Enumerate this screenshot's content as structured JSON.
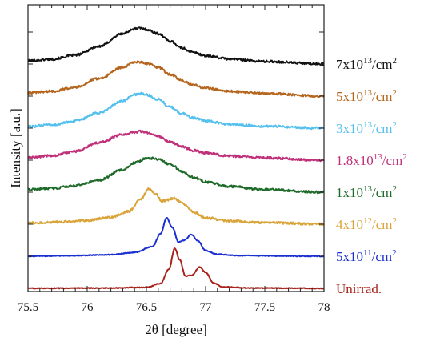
{
  "chart_data": {
    "type": "line",
    "xlabel": "2θ [degree]",
    "ylabel": "Intensity [a.u.]",
    "xlim": [
      75.5,
      78
    ],
    "x_ticks": [
      "75.5",
      "76",
      "76.5",
      "77",
      "77.5",
      "78"
    ],
    "y_tick_labels": "none",
    "grid": false,
    "legend": "right-side labels, stacked",
    "series": [
      {
        "name": "7x10^13/cm^2",
        "name_parts": {
          "base": "7x10",
          "exp1": "13",
          "mid": "/cm",
          "exp2": "2"
        },
        "color": "#111111",
        "offset": 7.0,
        "points": [
          [
            75.5,
            0.1
          ],
          [
            75.7,
            0.15
          ],
          [
            75.9,
            0.28
          ],
          [
            76.1,
            0.55
          ],
          [
            76.3,
            0.95
          ],
          [
            76.4,
            1.1
          ],
          [
            76.45,
            1.12
          ],
          [
            76.5,
            1.08
          ],
          [
            76.6,
            0.95
          ],
          [
            76.7,
            0.72
          ],
          [
            76.8,
            0.5
          ],
          [
            76.9,
            0.36
          ],
          [
            77.0,
            0.26
          ],
          [
            77.2,
            0.16
          ],
          [
            77.5,
            0.08
          ],
          [
            78.0,
            0.0
          ]
        ]
      },
      {
        "name": "5x10^13/cm^2",
        "name_parts": {
          "base": "5x10",
          "exp1": "13",
          "mid": "/cm",
          "exp2": "2"
        },
        "color": "#b5651d",
        "offset": 6.0,
        "points": [
          [
            75.5,
            0.1
          ],
          [
            75.7,
            0.15
          ],
          [
            75.9,
            0.28
          ],
          [
            76.1,
            0.55
          ],
          [
            76.3,
            0.9
          ],
          [
            76.4,
            1.05
          ],
          [
            76.45,
            1.06
          ],
          [
            76.5,
            1.02
          ],
          [
            76.6,
            0.9
          ],
          [
            76.7,
            0.68
          ],
          [
            76.8,
            0.48
          ],
          [
            76.9,
            0.34
          ],
          [
            77.0,
            0.25
          ],
          [
            77.2,
            0.15
          ],
          [
            77.5,
            0.08
          ],
          [
            78.0,
            0.0
          ]
        ]
      },
      {
        "name": "3x10^13/cm^2",
        "name_parts": {
          "base": "3x10",
          "exp1": "13",
          "mid": "/cm",
          "exp2": "2"
        },
        "color": "#55c0ee",
        "offset": 5.0,
        "points": [
          [
            75.5,
            0.05
          ],
          [
            75.7,
            0.1
          ],
          [
            75.9,
            0.22
          ],
          [
            76.1,
            0.48
          ],
          [
            76.3,
            0.85
          ],
          [
            76.4,
            1.05
          ],
          [
            76.45,
            1.08
          ],
          [
            76.5,
            1.04
          ],
          [
            76.6,
            0.9
          ],
          [
            76.7,
            0.66
          ],
          [
            76.8,
            0.46
          ],
          [
            76.9,
            0.32
          ],
          [
            77.0,
            0.22
          ],
          [
            77.2,
            0.12
          ],
          [
            77.5,
            0.06
          ],
          [
            78.0,
            0.0
          ]
        ]
      },
      {
        "name": "1.8x10^13/cm^2",
        "name_parts": {
          "base": "1.8x10",
          "exp1": "13",
          "mid": "/cm",
          "exp2": "2"
        },
        "color": "#c0307a",
        "offset": 4.0,
        "points": [
          [
            75.5,
            0.08
          ],
          [
            75.7,
            0.14
          ],
          [
            75.9,
            0.28
          ],
          [
            76.1,
            0.55
          ],
          [
            76.3,
            0.8
          ],
          [
            76.4,
            0.88
          ],
          [
            76.45,
            0.9
          ],
          [
            76.5,
            0.86
          ],
          [
            76.6,
            0.75
          ],
          [
            76.7,
            0.58
          ],
          [
            76.8,
            0.42
          ],
          [
            76.9,
            0.3
          ],
          [
            77.0,
            0.22
          ],
          [
            77.2,
            0.13
          ],
          [
            77.5,
            0.07
          ],
          [
            78.0,
            0.0
          ]
        ]
      },
      {
        "name": "1x10^13/cm^2",
        "name_parts": {
          "base": "1x10",
          "exp1": "13",
          "mid": "/cm",
          "exp2": "2"
        },
        "color": "#1f6b2a",
        "offset": 3.0,
        "points": [
          [
            75.5,
            0.08
          ],
          [
            75.7,
            0.12
          ],
          [
            75.9,
            0.2
          ],
          [
            76.1,
            0.38
          ],
          [
            76.3,
            0.7
          ],
          [
            76.4,
            0.92
          ],
          [
            76.5,
            1.05
          ],
          [
            76.55,
            1.06
          ],
          [
            76.6,
            1.02
          ],
          [
            76.7,
            0.88
          ],
          [
            76.8,
            0.65
          ],
          [
            76.9,
            0.46
          ],
          [
            77.0,
            0.32
          ],
          [
            77.2,
            0.18
          ],
          [
            77.5,
            0.08
          ],
          [
            78.0,
            0.0
          ]
        ]
      },
      {
        "name": "4x10^12/cm^2",
        "name_parts": {
          "base": "4x10",
          "exp1": "12",
          "mid": "/cm",
          "exp2": "2"
        },
        "color": "#d9a43a",
        "offset": 2.0,
        "points": [
          [
            75.5,
            0.04
          ],
          [
            75.8,
            0.07
          ],
          [
            76.0,
            0.12
          ],
          [
            76.2,
            0.22
          ],
          [
            76.35,
            0.4
          ],
          [
            76.45,
            0.78
          ],
          [
            76.52,
            1.1
          ],
          [
            76.58,
            0.95
          ],
          [
            76.63,
            0.72
          ],
          [
            76.68,
            0.76
          ],
          [
            76.73,
            0.82
          ],
          [
            76.8,
            0.66
          ],
          [
            76.9,
            0.38
          ],
          [
            77.0,
            0.2
          ],
          [
            77.2,
            0.1
          ],
          [
            77.5,
            0.05
          ],
          [
            78.0,
            0.0
          ]
        ]
      },
      {
        "name": "5x10^11/cm^2",
        "name_parts": {
          "base": "5x10",
          "exp1": "11",
          "mid": "/cm",
          "exp2": "2"
        },
        "color": "#1a2fd0",
        "offset": 1.0,
        "points": [
          [
            75.5,
            0.0
          ],
          [
            75.9,
            0.02
          ],
          [
            76.2,
            0.05
          ],
          [
            76.4,
            0.12
          ],
          [
            76.55,
            0.3
          ],
          [
            76.62,
            0.7
          ],
          [
            76.67,
            1.2
          ],
          [
            76.72,
            0.9
          ],
          [
            76.77,
            0.45
          ],
          [
            76.82,
            0.5
          ],
          [
            76.88,
            0.68
          ],
          [
            76.93,
            0.5
          ],
          [
            77.0,
            0.18
          ],
          [
            77.1,
            0.06
          ],
          [
            77.3,
            0.02
          ],
          [
            78.0,
            0.0
          ]
        ]
      },
      {
        "name": "Unirrad.",
        "name_parts": {
          "base": "Unirrad.",
          "exp1": "",
          "mid": "",
          "exp2": ""
        },
        "color": "#a8231c",
        "offset": 0.0,
        "points": [
          [
            75.5,
            0.0
          ],
          [
            76.2,
            0.01
          ],
          [
            76.5,
            0.03
          ],
          [
            76.62,
            0.15
          ],
          [
            76.69,
            0.6
          ],
          [
            76.74,
            1.25
          ],
          [
            76.78,
            0.9
          ],
          [
            76.83,
            0.38
          ],
          [
            76.88,
            0.4
          ],
          [
            76.95,
            0.66
          ],
          [
            77.0,
            0.5
          ],
          [
            77.07,
            0.16
          ],
          [
            77.15,
            0.04
          ],
          [
            77.4,
            0.01
          ],
          [
            78.0,
            0.0
          ]
        ]
      }
    ]
  }
}
